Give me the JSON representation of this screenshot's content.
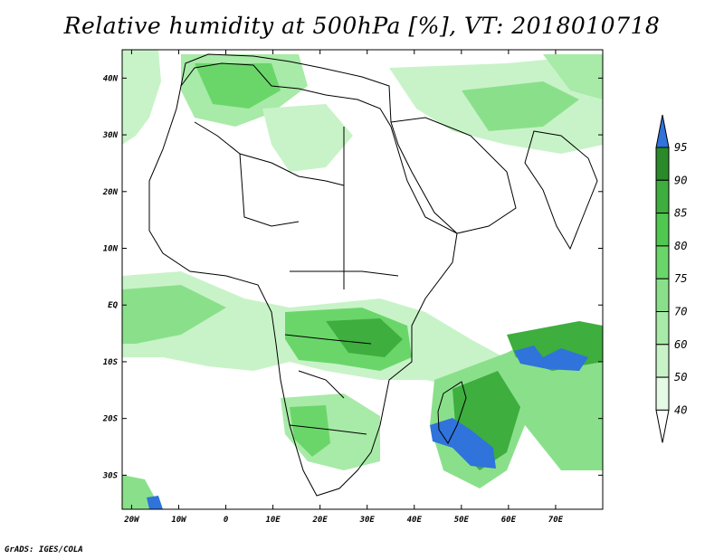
{
  "title": "Relative humidity at 500hPa [%], VT: 2018010718",
  "credit": "GrADS: IGES/COLA",
  "map": {
    "lon_range": [
      -22,
      80
    ],
    "lat_range": [
      -36,
      45
    ],
    "lon_ticks": [
      {
        "value": -20,
        "label": "20W"
      },
      {
        "value": -10,
        "label": "10W"
      },
      {
        "value": 0,
        "label": "0"
      },
      {
        "value": 10,
        "label": "10E"
      },
      {
        "value": 20,
        "label": "20E"
      },
      {
        "value": 30,
        "label": "30E"
      },
      {
        "value": 40,
        "label": "40E"
      },
      {
        "value": 50,
        "label": "50E"
      },
      {
        "value": 60,
        "label": "60E"
      },
      {
        "value": 70,
        "label": "70E"
      }
    ],
    "lat_ticks": [
      {
        "value": 40,
        "label": "40N"
      },
      {
        "value": 30,
        "label": "30N"
      },
      {
        "value": 20,
        "label": "20N"
      },
      {
        "value": 10,
        "label": "10N"
      },
      {
        "value": 0,
        "label": "EQ"
      },
      {
        "value": -10,
        "label": "10S"
      },
      {
        "value": -20,
        "label": "20S"
      },
      {
        "value": -30,
        "label": "30S"
      }
    ]
  },
  "colorbar": {
    "levels": [
      "95",
      "90",
      "85",
      "80",
      "75",
      "70",
      "60",
      "50",
      "40"
    ],
    "colors": [
      "#2a8a2a",
      "#3eae3e",
      "#50c850",
      "#6ad66a",
      "#8ae08a",
      "#a8eaa8",
      "#c8f3c8",
      "#e4fae4"
    ],
    "top_arrow_color": "#2f73db",
    "bottom_arrow_color": "#ffffff"
  },
  "colors": {
    "c40": "#e4fae4",
    "c50": "#c8f3c8",
    "c60": "#a8eaa8",
    "c70": "#8ae08a",
    "c75": "#6ad66a",
    "c80": "#50c850",
    "c90": "#2a8a2a",
    "c95": "#2f73db"
  }
}
